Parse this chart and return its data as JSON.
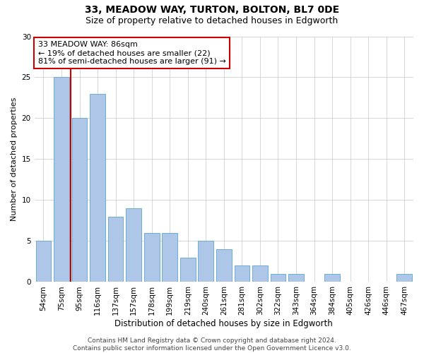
{
  "title": "33, MEADOW WAY, TURTON, BOLTON, BL7 0DE",
  "subtitle": "Size of property relative to detached houses in Edgworth",
  "xlabel": "Distribution of detached houses by size in Edgworth",
  "ylabel": "Number of detached properties",
  "categories": [
    "54sqm",
    "75sqm",
    "95sqm",
    "116sqm",
    "137sqm",
    "157sqm",
    "178sqm",
    "199sqm",
    "219sqm",
    "240sqm",
    "261sqm",
    "281sqm",
    "302sqm",
    "322sqm",
    "343sqm",
    "364sqm",
    "384sqm",
    "405sqm",
    "426sqm",
    "446sqm",
    "467sqm"
  ],
  "values": [
    5,
    25,
    20,
    23,
    8,
    9,
    6,
    6,
    3,
    5,
    4,
    2,
    2,
    1,
    1,
    0,
    1,
    0,
    0,
    0,
    1
  ],
  "bar_color": "#aec6e8",
  "bar_edge_color": "#6baed6",
  "vline_x": 1.5,
  "vline_color": "#cc0000",
  "annotation_line1": "33 MEADOW WAY: 86sqm",
  "annotation_line2": "← 19% of detached houses are smaller (22)",
  "annotation_line3": "81% of semi-detached houses are larger (91) →",
  "annotation_box_color": "#ffffff",
  "annotation_box_edge": "#cc0000",
  "ylim": [
    0,
    30
  ],
  "yticks": [
    0,
    5,
    10,
    15,
    20,
    25,
    30
  ],
  "footer_line1": "Contains HM Land Registry data © Crown copyright and database right 2024.",
  "footer_line2": "Contains public sector information licensed under the Open Government Licence v3.0.",
  "bg_color": "#ffffff",
  "grid_color": "#d0d0d0",
  "title_fontsize": 10,
  "subtitle_fontsize": 9,
  "xlabel_fontsize": 8.5,
  "ylabel_fontsize": 8,
  "tick_fontsize": 7.5,
  "annotation_fontsize": 8,
  "footer_fontsize": 6.5
}
